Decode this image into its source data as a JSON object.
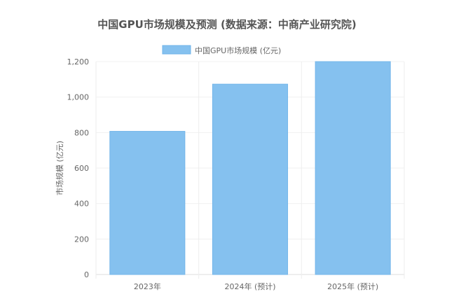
{
  "chart_data": {
    "type": "bar",
    "title": "中国GPU市场规模及预测 (数据来源：中商产业研究院)",
    "xlabel": "",
    "ylabel": "市场规模 (亿元)",
    "categories": [
      "2023年",
      "2024年 (预计)",
      "2025年 (预计)"
    ],
    "series": [
      {
        "name": "中国GPU市场规模 (亿元)",
        "values": [
          807,
          1073,
          1200
        ],
        "color": "#85c1ef"
      }
    ],
    "ylim": [
      0,
      1200
    ],
    "yticks": [
      0,
      200,
      400,
      600,
      800,
      1000,
      1200
    ],
    "ytick_labels": [
      "0",
      "200",
      "400",
      "600",
      "800",
      "1,000",
      "1,200"
    ],
    "grid": true,
    "legend_position": "top"
  }
}
